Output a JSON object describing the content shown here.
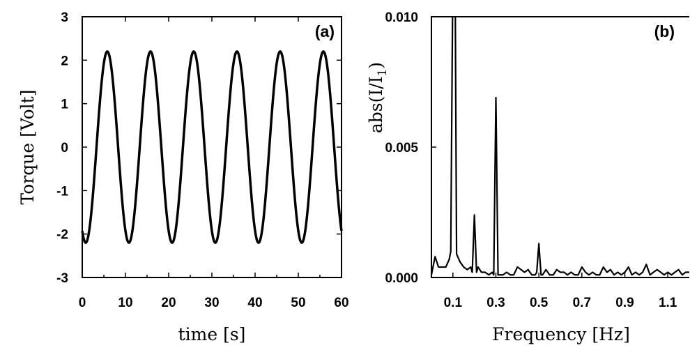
{
  "chart_data": [
    {
      "type": "line",
      "panel_label": "(a)",
      "xlabel": "time [s]",
      "ylabel": "Torque [Volt]",
      "xlim": [
        0,
        60
      ],
      "ylim": [
        -3,
        3
      ],
      "xticks": [
        0,
        10,
        20,
        30,
        40,
        50,
        60
      ],
      "yticks": [
        -3,
        -2,
        -1,
        0,
        1,
        2,
        3
      ],
      "grid": false,
      "series": [
        {
          "signal": "sinusoid",
          "amplitude": 2.2,
          "period": 10,
          "peak_times": [
            5.8,
            15.8,
            25.8,
            35.8,
            45.8,
            55.8
          ],
          "x_range": [
            0,
            60
          ]
        }
      ]
    },
    {
      "type": "line",
      "panel_label": "(b)",
      "xlabel": "Frequency [Hz]",
      "ylabel": "abs(I/I1)",
      "ylabel_main": "abs(I/I",
      "ylabel_sub": "1",
      "ylabel_close": ")",
      "xlim": [
        0,
        1.2
      ],
      "ylim": [
        0,
        0.01
      ],
      "xticks": [
        "0.1",
        "0.3",
        "0.5",
        "0.7",
        "0.9",
        "1.1"
      ],
      "yticks": [
        "0.000",
        "0.005",
        "0.010"
      ],
      "grid": false,
      "series": [
        {
          "x": [
            0.0,
            0.017,
            0.033,
            0.05,
            0.067,
            0.083,
            0.09,
            0.1,
            0.11,
            0.117,
            0.133,
            0.15,
            0.167,
            0.183,
            0.19,
            0.2,
            0.21,
            0.217,
            0.233,
            0.25,
            0.267,
            0.283,
            0.29,
            0.3,
            0.31,
            0.317,
            0.333,
            0.35,
            0.367,
            0.383,
            0.4,
            0.417,
            0.433,
            0.45,
            0.467,
            0.483,
            0.49,
            0.5,
            0.51,
            0.517,
            0.533,
            0.55,
            0.567,
            0.583,
            0.6,
            0.617,
            0.633,
            0.65,
            0.667,
            0.683,
            0.7,
            0.717,
            0.733,
            0.75,
            0.767,
            0.783,
            0.8,
            0.817,
            0.833,
            0.85,
            0.867,
            0.883,
            0.9,
            0.917,
            0.933,
            0.95,
            0.967,
            0.983,
            1.0,
            1.017,
            1.033,
            1.05,
            1.067,
            1.083,
            1.1,
            1.117,
            1.133,
            1.15,
            1.167,
            1.183,
            1.2
          ],
          "y": [
            0.0001,
            0.0008,
            0.0004,
            0.0004,
            0.0004,
            0.0007,
            0.001,
            0.012,
            0.012,
            0.0009,
            0.0006,
            0.0004,
            0.0003,
            0.0004,
            0.0002,
            0.0024,
            0.0002,
            0.0004,
            0.0002,
            0.0002,
            0.0001,
            0.0002,
            0.0001,
            0.0069,
            0.0001,
            0.0001,
            0.0001,
            0.0002,
            0.0001,
            0.0001,
            0.0004,
            0.0003,
            0.0002,
            0.0003,
            0.0001,
            0.0001,
            0.0002,
            0.0013,
            0.0001,
            0.0001,
            0.0003,
            0.0001,
            0.0001,
            0.0003,
            0.0002,
            0.0002,
            0.0001,
            0.0002,
            0.0001,
            0.0001,
            0.0004,
            0.0002,
            0.0001,
            0.0002,
            0.0001,
            0.0001,
            0.0004,
            0.0002,
            0.0003,
            0.0001,
            0.0002,
            0.0001,
            0.0002,
            0.0004,
            0.0001,
            0.0002,
            0.0001,
            0.0002,
            0.0005,
            0.0001,
            0.0002,
            0.0003,
            0.0002,
            0.0001,
            0.0002,
            0.0001,
            0.0002,
            0.0003,
            0.0001,
            0.0002,
            0.0002
          ]
        }
      ]
    }
  ]
}
